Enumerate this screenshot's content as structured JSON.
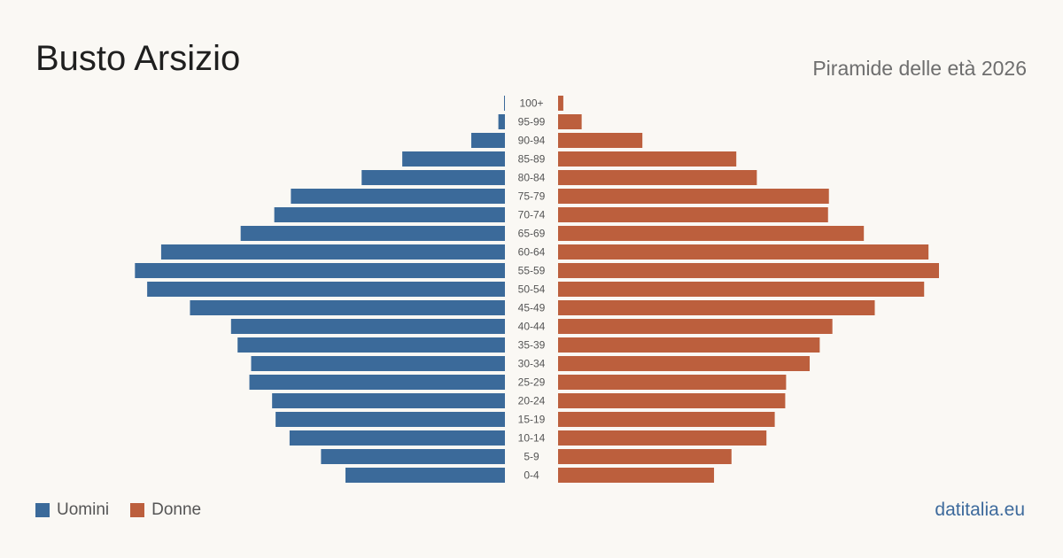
{
  "title": "Busto Arsizio",
  "subtitle": "Piramide delle età 2026",
  "brand": "datitalia.eu",
  "colors": {
    "men": "#3b6a9a",
    "women": "#bc5f3d",
    "background": "#faf8f4"
  },
  "legend": {
    "men_label": "Uomini",
    "women_label": "Donne"
  },
  "chart_data": {
    "type": "bar",
    "orientation": "horizontal",
    "title": "Busto Arsizio",
    "subtitle": "Piramide delle età 2026",
    "categories": [
      "100+",
      "95-99",
      "90-94",
      "85-89",
      "80-84",
      "75-79",
      "70-74",
      "65-69",
      "60-64",
      "55-59",
      "50-54",
      "45-49",
      "40-44",
      "35-39",
      "30-34",
      "25-29",
      "20-24",
      "15-19",
      "10-14",
      "5-9",
      "0-4"
    ],
    "series": [
      {
        "name": "Uomini",
        "values": [
          2,
          15,
          77,
          235,
          328,
          490,
          528,
          605,
          787,
          847,
          819,
          721,
          627,
          612,
          581,
          585,
          533,
          525,
          493,
          421,
          365
        ]
      },
      {
        "name": "Donne",
        "values": [
          12,
          54,
          193,
          408,
          455,
          620,
          618,
          700,
          848,
          872,
          838,
          725,
          628,
          599,
          576,
          522,
          520,
          496,
          477,
          397,
          357
        ]
      }
    ],
    "legend": "bottom-left"
  }
}
